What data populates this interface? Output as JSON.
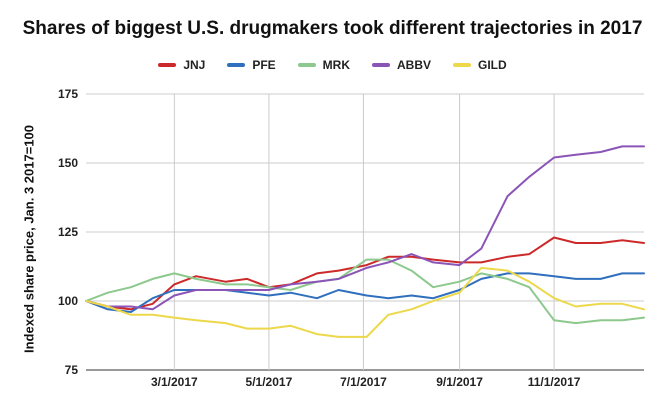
{
  "chart_data": {
    "type": "line",
    "title": "Shares of biggest U.S. drugmakers took different trajectories in 2017",
    "xlabel": "",
    "ylabel": "Indexed share price, Jan. 3 2017=100",
    "xlim": [
      "2017-01-03",
      "2017-12-29"
    ],
    "ylim": [
      75,
      175
    ],
    "y_ticks": [
      75,
      100,
      125,
      150,
      175
    ],
    "x_ticks": [
      {
        "date": "2017-03-01",
        "label": "3/1/2017"
      },
      {
        "date": "2017-05-01",
        "label": "5/1/2017"
      },
      {
        "date": "2017-07-01",
        "label": "7/1/2017"
      },
      {
        "date": "2017-09-01",
        "label": "9/1/2017"
      },
      {
        "date": "2017-11-01",
        "label": "11/1/2017"
      }
    ],
    "grid": true,
    "legend_position": "top",
    "dates": [
      "2017-01-03",
      "2017-01-17",
      "2017-02-01",
      "2017-02-15",
      "2017-03-01",
      "2017-03-15",
      "2017-04-03",
      "2017-04-17",
      "2017-05-01",
      "2017-05-15",
      "2017-06-01",
      "2017-06-15",
      "2017-07-03",
      "2017-07-17",
      "2017-08-01",
      "2017-08-15",
      "2017-09-01",
      "2017-09-15",
      "2017-10-02",
      "2017-10-16",
      "2017-11-01",
      "2017-11-15",
      "2017-12-01",
      "2017-12-15",
      "2017-12-29"
    ],
    "series": [
      {
        "name": "JNJ",
        "color": "#cc2a2a",
        "values": [
          100,
          98,
          97,
          99,
          106,
          109,
          107,
          108,
          105,
          106,
          110,
          111,
          113,
          116,
          116,
          115,
          114,
          114,
          116,
          117,
          123,
          121,
          121,
          122,
          121
        ]
      },
      {
        "name": "PFE",
        "color": "#2f6fbd",
        "values": [
          100,
          97,
          96,
          101,
          104,
          104,
          104,
          103,
          102,
          103,
          101,
          104,
          102,
          101,
          102,
          101,
          104,
          108,
          110,
          110,
          109,
          108,
          108,
          110,
          110
        ]
      },
      {
        "name": "MRK",
        "color": "#8dc88d",
        "values": [
          100,
          103,
          105,
          108,
          110,
          108,
          106,
          106,
          105,
          104,
          107,
          108,
          115,
          115,
          111,
          105,
          107,
          110,
          108,
          105,
          93,
          92,
          93,
          93,
          94
        ]
      },
      {
        "name": "ABBV",
        "color": "#8b55b8",
        "values": [
          100,
          98,
          98,
          97,
          102,
          104,
          104,
          104,
          104,
          106,
          107,
          108,
          112,
          114,
          117,
          114,
          113,
          119,
          138,
          145,
          152,
          153,
          154,
          156,
          156
        ]
      },
      {
        "name": "GILD",
        "color": "#ecd84a",
        "values": [
          100,
          98,
          95,
          95,
          94,
          93,
          92,
          90,
          90,
          91,
          88,
          87,
          87,
          95,
          97,
          100,
          103,
          112,
          111,
          107,
          101,
          98,
          99,
          99,
          97
        ]
      }
    ]
  }
}
